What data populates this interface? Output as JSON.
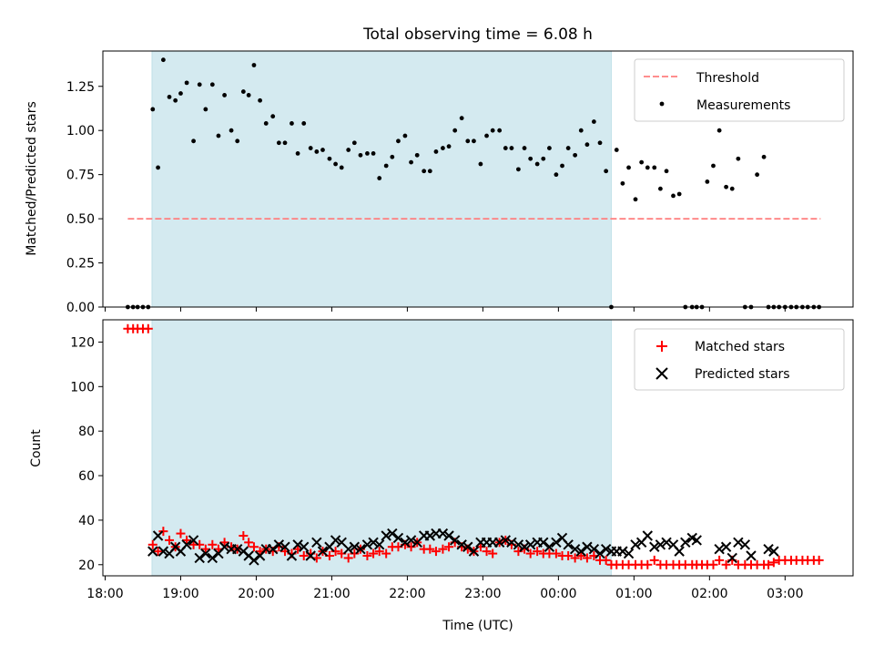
{
  "title": "Total observing time = 6.08 h",
  "colors": {
    "shade": "#d4eaf0",
    "threshold": "#ff7f7f",
    "matched": "#ff0000",
    "predicted": "#000000",
    "points": "#000000"
  },
  "chart_data": [
    {
      "type": "scatter",
      "ylabel": "Matched/Predicted stars",
      "ylim": [
        0,
        1.45
      ],
      "yticks": [
        "0.00",
        "0.25",
        "0.50",
        "0.75",
        "1.00",
        "1.25"
      ],
      "xlim_hours": [
        17.97,
        27.9
      ],
      "shaded_span_hours": [
        18.62,
        24.7
      ],
      "threshold": {
        "value": 0.5,
        "x_range_hours": [
          18.3,
          27.47
        ]
      },
      "legend": [
        "Threshold",
        "Measurements"
      ],
      "legend_position": "upper right",
      "series": [
        {
          "name": "Measurements",
          "x_hours": [
            18.3,
            18.37,
            18.43,
            18.5,
            18.57,
            18.63,
            18.7,
            18.77,
            18.85,
            18.93,
            19.0,
            19.08,
            19.17,
            19.25,
            19.33,
            19.42,
            19.5,
            19.58,
            19.67,
            19.75,
            19.83,
            19.9,
            19.97,
            20.05,
            20.13,
            20.22,
            20.3,
            20.38,
            20.47,
            20.55,
            20.63,
            20.72,
            20.8,
            20.88,
            20.97,
            21.05,
            21.13,
            21.22,
            21.3,
            21.38,
            21.47,
            21.55,
            21.63,
            21.72,
            21.8,
            21.88,
            21.97,
            22.05,
            22.13,
            22.22,
            22.3,
            22.38,
            22.47,
            22.55,
            22.63,
            22.72,
            22.8,
            22.88,
            22.97,
            23.05,
            23.13,
            23.22,
            23.3,
            23.38,
            23.47,
            23.55,
            23.63,
            23.72,
            23.8,
            23.88,
            23.97,
            24.05,
            24.13,
            24.22,
            24.3,
            24.38,
            24.47,
            24.55,
            24.63,
            24.7,
            24.77,
            24.85,
            24.93,
            25.02,
            25.1,
            25.18,
            25.27,
            25.35,
            25.43,
            25.52,
            25.6,
            25.68,
            25.77,
            25.83,
            25.9,
            25.97,
            26.05,
            26.13,
            26.22,
            26.3,
            26.38,
            26.47,
            26.55,
            26.63,
            26.72,
            26.78,
            26.85,
            26.92,
            27.0,
            27.08,
            27.15,
            27.23,
            27.3,
            27.38,
            27.45
          ],
          "y": [
            0,
            0,
            0,
            0,
            0,
            1.12,
            0.79,
            1.4,
            1.19,
            1.17,
            1.21,
            1.27,
            0.94,
            1.26,
            1.12,
            1.26,
            0.97,
            1.2,
            1.0,
            0.94,
            1.22,
            1.2,
            1.37,
            1.17,
            1.04,
            1.08,
            0.93,
            0.93,
            1.04,
            0.87,
            1.04,
            0.9,
            0.88,
            0.89,
            0.84,
            0.81,
            0.79,
            0.89,
            0.93,
            0.86,
            0.87,
            0.87,
            0.73,
            0.8,
            0.85,
            0.94,
            0.97,
            0.82,
            0.86,
            0.77,
            0.77,
            0.88,
            0.9,
            0.91,
            1.0,
            1.07,
            0.94,
            0.94,
            0.81,
            0.97,
            1.0,
            1.0,
            0.9,
            0.9,
            0.78,
            0.9,
            0.84,
            0.81,
            0.84,
            0.9,
            0.75,
            0.8,
            0.9,
            0.86,
            1.0,
            0.92,
            1.05,
            0.93,
            0.77,
            0.0,
            0.89,
            0.7,
            0.79,
            0.61,
            0.82,
            0.79,
            0.79,
            0.67,
            0.77,
            0.63,
            0.64,
            0,
            0,
            0,
            0,
            0.71,
            0.8,
            1.0,
            0.68,
            0.67,
            0.84,
            0,
            0,
            0.75,
            0.85,
            0,
            0,
            0,
            0,
            0,
            0,
            0,
            0,
            0,
            0
          ]
        }
      ]
    },
    {
      "type": "scatter",
      "xlabel": "Time (UTC)",
      "ylabel": "Count",
      "ylim": [
        15,
        130
      ],
      "yticks": [
        "20",
        "40",
        "60",
        "80",
        "100",
        "120"
      ],
      "xtick_hours": [
        18,
        19,
        20,
        21,
        22,
        23,
        24,
        25,
        26,
        27
      ],
      "xtick_labels": [
        "18:00",
        "19:00",
        "20:00",
        "21:00",
        "22:00",
        "23:00",
        "00:00",
        "01:00",
        "02:00",
        "03:00"
      ],
      "legend": [
        "Matched stars",
        "Predicted stars"
      ],
      "legend_position": "upper right",
      "series": [
        {
          "name": "Matched stars",
          "x_hours": [
            18.3,
            18.37,
            18.43,
            18.5,
            18.57,
            18.63,
            18.7,
            18.77,
            18.85,
            18.93,
            19.0,
            19.08,
            19.17,
            19.25,
            19.33,
            19.42,
            19.5,
            19.58,
            19.67,
            19.75,
            19.83,
            19.9,
            19.97,
            20.05,
            20.13,
            20.22,
            20.3,
            20.38,
            20.47,
            20.55,
            20.63,
            20.72,
            20.8,
            20.88,
            20.97,
            21.05,
            21.13,
            21.22,
            21.3,
            21.38,
            21.47,
            21.55,
            21.63,
            21.72,
            21.8,
            21.88,
            21.97,
            22.05,
            22.13,
            22.22,
            22.3,
            22.38,
            22.47,
            22.55,
            22.63,
            22.72,
            22.8,
            22.88,
            22.97,
            23.05,
            23.13,
            23.22,
            23.3,
            23.38,
            23.47,
            23.55,
            23.63,
            23.72,
            23.8,
            23.88,
            23.97,
            24.05,
            24.13,
            24.22,
            24.3,
            24.38,
            24.47,
            24.55,
            24.63,
            24.7,
            24.77,
            24.85,
            24.93,
            25.02,
            25.1,
            25.18,
            25.27,
            25.35,
            25.43,
            25.52,
            25.6,
            25.68,
            25.77,
            25.83,
            25.9,
            25.97,
            26.05,
            26.13,
            26.22,
            26.3,
            26.38,
            26.47,
            26.55,
            26.63,
            26.72,
            26.78,
            26.85,
            26.92,
            27.0,
            27.08,
            27.15,
            27.23,
            27.3,
            27.38,
            27.45
          ],
          "y": [
            126,
            126,
            126,
            126,
            126,
            29,
            26,
            35,
            31,
            28,
            34,
            31,
            29,
            29,
            27,
            29,
            27,
            30,
            28,
            27,
            33,
            30,
            28,
            26,
            27,
            26,
            28,
            26,
            25,
            27,
            24,
            25,
            23,
            26,
            24,
            26,
            25,
            23,
            25,
            27,
            24,
            25,
            26,
            25,
            28,
            28,
            29,
            28,
            30,
            27,
            27,
            26,
            27,
            28,
            30,
            28,
            27,
            26,
            28,
            26,
            25,
            30,
            31,
            29,
            26,
            27,
            25,
            26,
            25,
            25,
            25,
            24,
            24,
            23,
            24,
            23,
            24,
            22,
            22,
            20,
            20,
            20,
            20,
            20,
            20,
            20,
            22,
            20,
            20,
            20,
            20,
            20,
            20,
            20,
            20,
            20,
            20,
            22,
            20,
            22,
            20,
            20,
            20,
            20,
            20,
            20,
            21,
            22,
            22,
            22,
            22,
            22,
            22,
            22,
            22
          ]
        },
        {
          "name": "Predicted stars",
          "x_hours": [
            18.63,
            18.7,
            18.77,
            18.85,
            18.93,
            19.0,
            19.08,
            19.17,
            19.25,
            19.33,
            19.42,
            19.5,
            19.58,
            19.67,
            19.75,
            19.83,
            19.9,
            19.97,
            20.05,
            20.13,
            20.22,
            20.3,
            20.38,
            20.47,
            20.55,
            20.63,
            20.72,
            20.8,
            20.88,
            20.97,
            21.05,
            21.13,
            21.22,
            21.3,
            21.38,
            21.47,
            21.55,
            21.63,
            21.72,
            21.8,
            21.88,
            21.97,
            22.05,
            22.13,
            22.22,
            22.3,
            22.38,
            22.47,
            22.55,
            22.63,
            22.72,
            22.8,
            22.88,
            22.97,
            23.05,
            23.13,
            23.22,
            23.3,
            23.38,
            23.47,
            23.55,
            23.63,
            23.72,
            23.8,
            23.88,
            23.97,
            24.05,
            24.13,
            24.22,
            24.3,
            24.38,
            24.47,
            24.55,
            24.63,
            24.7,
            24.77,
            24.85,
            24.93,
            25.02,
            25.1,
            25.18,
            25.27,
            25.35,
            25.43,
            25.52,
            25.6,
            25.68,
            25.77,
            25.83,
            26.13,
            26.22,
            26.3,
            26.38,
            26.47,
            26.55,
            26.78,
            26.85
          ],
          "y": [
            26,
            33,
            26,
            25,
            28,
            26,
            29,
            31,
            23,
            25,
            23,
            25,
            28,
            27,
            27,
            26,
            24,
            22,
            24,
            27,
            27,
            29,
            28,
            24,
            29,
            28,
            24,
            30,
            26,
            28,
            31,
            30,
            27,
            28,
            27,
            29,
            30,
            29,
            33,
            34,
            32,
            30,
            31,
            30,
            33,
            33,
            34,
            34,
            33,
            31,
            29,
            28,
            26,
            30,
            30,
            30,
            30,
            31,
            30,
            29,
            28,
            29,
            30,
            30,
            28,
            30,
            32,
            29,
            27,
            26,
            28,
            27,
            25,
            27,
            26,
            26,
            26,
            25,
            29,
            30,
            33,
            28,
            29,
            30,
            29,
            26,
            30,
            32,
            31,
            27,
            28,
            23,
            30,
            29,
            24,
            27,
            26
          ]
        }
      ]
    }
  ]
}
